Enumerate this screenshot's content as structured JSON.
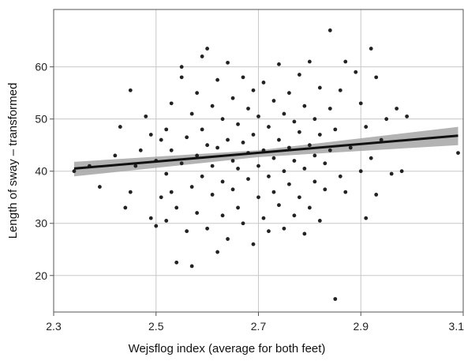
{
  "chart_data": {
    "type": "scatter",
    "title": "",
    "xlabel": "Wejsflog index (average for both feet)",
    "ylabel": "Length of sway – transformed",
    "xlim": [
      2.3,
      3.1
    ],
    "ylim": [
      13,
      71
    ],
    "xticks": [
      "2.3",
      "2.5",
      "2.7",
      "2.9",
      "3.1"
    ],
    "xtick_values": [
      2.3,
      2.5,
      2.7,
      2.9,
      3.1
    ],
    "yticks": [
      "20",
      "30",
      "40",
      "50",
      "60"
    ],
    "ytick_values": [
      20,
      30,
      40,
      50,
      60
    ],
    "grid": true,
    "point_color": "#222222",
    "fit_line_color": "#111111",
    "band_color": "#a6a6a6",
    "fit_line": {
      "x": [
        2.34,
        3.09
      ],
      "y": [
        40.5,
        46.8
      ]
    },
    "confidence_band": {
      "x": [
        2.34,
        2.7,
        3.09
      ],
      "lower": [
        39.0,
        42.7,
        45.0
      ],
      "upper": [
        41.8,
        44.0,
        48.5
      ]
    },
    "series": [
      {
        "values": [
          [
            2.34,
            40.0
          ],
          [
            2.37,
            41.0
          ],
          [
            2.39,
            37.0
          ],
          [
            2.42,
            43.0
          ],
          [
            2.43,
            48.5
          ],
          [
            2.44,
            33.0
          ],
          [
            2.45,
            55.5
          ],
          [
            2.45,
            36.0
          ],
          [
            2.46,
            41.0
          ],
          [
            2.47,
            44.0
          ],
          [
            2.48,
            50.5
          ],
          [
            2.49,
            47.0
          ],
          [
            2.49,
            31.0
          ],
          [
            2.5,
            42.0
          ],
          [
            2.5,
            29.5
          ],
          [
            2.51,
            46.0
          ],
          [
            2.51,
            35.0
          ],
          [
            2.52,
            39.5
          ],
          [
            2.52,
            48.0
          ],
          [
            2.52,
            30.5
          ],
          [
            2.53,
            53.0
          ],
          [
            2.53,
            36.0
          ],
          [
            2.53,
            44.0
          ],
          [
            2.54,
            33.0
          ],
          [
            2.54,
            22.5
          ],
          [
            2.55,
            58.0
          ],
          [
            2.55,
            41.5
          ],
          [
            2.55,
            60.0
          ],
          [
            2.56,
            28.5
          ],
          [
            2.56,
            46.5
          ],
          [
            2.57,
            37.0
          ],
          [
            2.57,
            51.0
          ],
          [
            2.57,
            21.8
          ],
          [
            2.58,
            55.0
          ],
          [
            2.58,
            43.0
          ],
          [
            2.58,
            32.0
          ],
          [
            2.59,
            62.0
          ],
          [
            2.59,
            39.0
          ],
          [
            2.59,
            48.0
          ],
          [
            2.6,
            63.5
          ],
          [
            2.6,
            29.0
          ],
          [
            2.6,
            45.0
          ],
          [
            2.61,
            52.5
          ],
          [
            2.61,
            35.5
          ],
          [
            2.61,
            41.0
          ],
          [
            2.62,
            24.5
          ],
          [
            2.62,
            57.5
          ],
          [
            2.62,
            44.5
          ],
          [
            2.63,
            50.0
          ],
          [
            2.63,
            31.5
          ],
          [
            2.63,
            38.0
          ],
          [
            2.64,
            60.8
          ],
          [
            2.64,
            46.0
          ],
          [
            2.64,
            27.0
          ],
          [
            2.65,
            54.0
          ],
          [
            2.65,
            42.0
          ],
          [
            2.65,
            36.5
          ],
          [
            2.66,
            49.0
          ],
          [
            2.66,
            33.0
          ],
          [
            2.66,
            40.5
          ],
          [
            2.67,
            58.0
          ],
          [
            2.67,
            45.5
          ],
          [
            2.67,
            30.0
          ],
          [
            2.68,
            52.0
          ],
          [
            2.68,
            38.5
          ],
          [
            2.68,
            43.5
          ],
          [
            2.69,
            26.0
          ],
          [
            2.69,
            55.5
          ],
          [
            2.69,
            47.0
          ],
          [
            2.7,
            41.0
          ],
          [
            2.7,
            35.0
          ],
          [
            2.7,
            50.5
          ],
          [
            2.71,
            44.0
          ],
          [
            2.71,
            31.0
          ],
          [
            2.71,
            57.0
          ],
          [
            2.72,
            39.0
          ],
          [
            2.72,
            48.5
          ],
          [
            2.72,
            28.5
          ],
          [
            2.73,
            53.5
          ],
          [
            2.73,
            42.5
          ],
          [
            2.73,
            36.0
          ],
          [
            2.74,
            60.5
          ],
          [
            2.74,
            46.0
          ],
          [
            2.74,
            33.5
          ],
          [
            2.75,
            51.0
          ],
          [
            2.75,
            40.0
          ],
          [
            2.75,
            29.0
          ],
          [
            2.76,
            55.0
          ],
          [
            2.76,
            44.5
          ],
          [
            2.76,
            37.5
          ],
          [
            2.77,
            49.5
          ],
          [
            2.77,
            31.5
          ],
          [
            2.77,
            42.0
          ],
          [
            2.78,
            58.5
          ],
          [
            2.78,
            35.0
          ],
          [
            2.78,
            47.5
          ],
          [
            2.79,
            28.0
          ],
          [
            2.79,
            52.5
          ],
          [
            2.79,
            40.5
          ],
          [
            2.8,
            45.0
          ],
          [
            2.8,
            61.0
          ],
          [
            2.8,
            33.0
          ],
          [
            2.81,
            50.0
          ],
          [
            2.81,
            38.0
          ],
          [
            2.81,
            43.0
          ],
          [
            2.82,
            56.0
          ],
          [
            2.82,
            30.5
          ],
          [
            2.82,
            47.0
          ],
          [
            2.83,
            41.5
          ],
          [
            2.83,
            36.5
          ],
          [
            2.84,
            52.0
          ],
          [
            2.84,
            44.0
          ],
          [
            2.84,
            67.0
          ],
          [
            2.85,
            15.5
          ],
          [
            2.85,
            48.0
          ],
          [
            2.86,
            39.0
          ],
          [
            2.86,
            55.5
          ],
          [
            2.87,
            36.0
          ],
          [
            2.87,
            61.0
          ],
          [
            2.88,
            44.5
          ],
          [
            2.89,
            59.0
          ],
          [
            2.9,
            40.0
          ],
          [
            2.9,
            53.0
          ],
          [
            2.91,
            31.0
          ],
          [
            2.91,
            48.5
          ],
          [
            2.92,
            63.5
          ],
          [
            2.92,
            42.5
          ],
          [
            2.93,
            58.0
          ],
          [
            2.93,
            35.5
          ],
          [
            2.94,
            46.0
          ],
          [
            2.95,
            50.0
          ],
          [
            2.96,
            39.5
          ],
          [
            2.97,
            52.0
          ],
          [
            2.98,
            40.0
          ],
          [
            2.99,
            50.5
          ],
          [
            3.09,
            43.5
          ]
        ]
      }
    ]
  }
}
